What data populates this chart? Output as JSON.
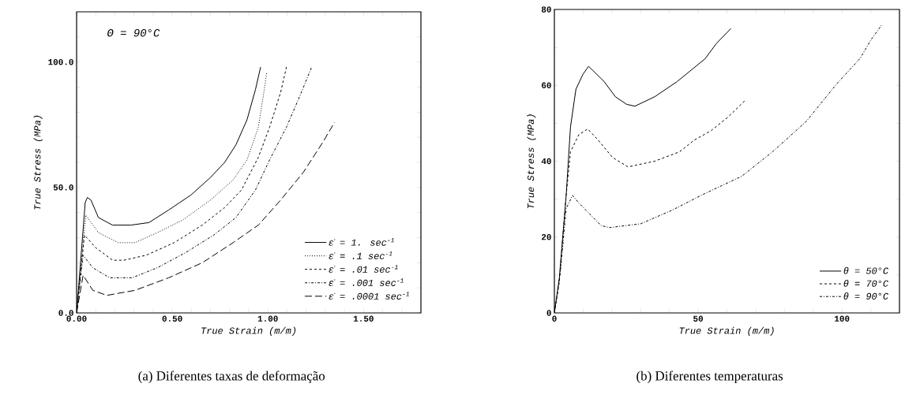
{
  "chart_data": [
    {
      "type": "line",
      "xlabel": "True Strain (m/m)",
      "ylabel": "True Stress (MPa)",
      "xlim": [
        0,
        1.8
      ],
      "ylim": [
        0,
        120
      ],
      "xticks": [
        {
          "value": 0,
          "label": "0.00"
        },
        {
          "value": 0.1,
          "label": null
        },
        {
          "value": 0.2,
          "label": null
        },
        {
          "value": 0.3,
          "label": null
        },
        {
          "value": 0.4,
          "label": null
        },
        {
          "value": 0.5,
          "label": "0.50"
        },
        {
          "value": 0.6,
          "label": null
        },
        {
          "value": 0.7,
          "label": null
        },
        {
          "value": 0.8,
          "label": null
        },
        {
          "value": 0.9,
          "label": null
        },
        {
          "value": 1.0,
          "label": "1.00"
        },
        {
          "value": 1.1,
          "label": null
        },
        {
          "value": 1.2,
          "label": null
        },
        {
          "value": 1.3,
          "label": null
        },
        {
          "value": 1.4,
          "label": null
        },
        {
          "value": 1.5,
          "label": "1.50"
        },
        {
          "value": 1.6,
          "label": null
        },
        {
          "value": 1.7,
          "label": null
        }
      ],
      "yticks": [
        {
          "value": 0,
          "label": "0.0"
        },
        {
          "value": 10,
          "label": null
        },
        {
          "value": 20,
          "label": null
        },
        {
          "value": 30,
          "label": null
        },
        {
          "value": 40,
          "label": null
        },
        {
          "value": 50,
          "label": "50.0"
        },
        {
          "value": 60,
          "label": null
        },
        {
          "value": 70,
          "label": null
        },
        {
          "value": 80,
          "label": null
        },
        {
          "value": 90,
          "label": null
        },
        {
          "value": 100,
          "label": "100.0"
        },
        {
          "value": 110,
          "label": null
        }
      ],
      "legend": "bottom right",
      "grid": false,
      "annotations": [
        "Θ = 90°C",
        "(a) Diferentes taxas de deformação"
      ],
      "series": [
        {
          "name": "ε̇ = 1. sec$^{-1}$",
          "color": "#000000",
          "line_style": "solid",
          "x": [
            0,
            0.045,
            0.056,
            0.075,
            0.114,
            0.188,
            0.283,
            0.378,
            0.481,
            0.598,
            0.7,
            0.774,
            0.833,
            0.891,
            0.935,
            0.962
          ],
          "values": [
            0,
            44,
            46,
            45,
            38,
            35,
            35,
            36,
            41,
            47,
            54,
            60,
            67,
            77,
            89,
            98
          ]
        },
        {
          "name": "ε̇ = .1 sec$^{-1}$",
          "color": "#000000",
          "line_style": "dotted",
          "x": [
            0,
            0.048,
            0.114,
            0.217,
            0.305,
            0.422,
            0.554,
            0.7,
            0.818,
            0.891,
            0.95,
            0.979,
            0.994
          ],
          "values": [
            0,
            39,
            32,
            28,
            28,
            32,
            37,
            45,
            53,
            61,
            74,
            88,
            96
          ]
        },
        {
          "name": "ε̇ = .01 sec$^{-1}$",
          "color": "#000000",
          "line_style": "dashed",
          "x": [
            0,
            0.041,
            0.1,
            0.188,
            0.246,
            0.364,
            0.51,
            0.657,
            0.774,
            0.862,
            0.95,
            1.009,
            1.067,
            1.097
          ],
          "values": [
            0,
            31,
            26,
            21,
            21,
            23,
            28,
            35,
            42,
            49,
            62,
            74,
            88,
            98
          ]
        },
        {
          "name": "ε̇ = .001 sec$^{-1}$",
          "color": "#000000",
          "line_style": "dashdot",
          "x": [
            0,
            0.034,
            0.085,
            0.173,
            0.29,
            0.422,
            0.569,
            0.716,
            0.833,
            0.935,
            1.009,
            1.097,
            1.17,
            1.229
          ],
          "values": [
            0,
            23,
            18,
            14,
            14,
            18,
            24,
            31,
            38,
            49,
            61,
            74,
            87,
            98
          ]
        },
        {
          "name": "ε̇ = .0001 sec$^{-1}$",
          "color": "#000000",
          "line_style": "longdash",
          "x": [
            0,
            0.034,
            0.085,
            0.158,
            0.305,
            0.481,
            0.657,
            0.818,
            0.95,
            1.067,
            1.185,
            1.287,
            1.349
          ],
          "values": [
            0,
            15,
            9,
            7,
            9,
            14,
            20,
            28,
            35,
            45,
            56,
            68,
            76
          ]
        }
      ]
    },
    {
      "type": "line",
      "xlabel": "True Strain (m/m)",
      "ylabel": "True Stress (MPa)",
      "xlim": [
        0,
        120
      ],
      "ylim": [
        0,
        80
      ],
      "xticks": [
        0,
        {
          "value": 10,
          "label": null
        },
        {
          "value": 20,
          "label": null
        },
        {
          "value": 30,
          "label": null
        },
        {
          "value": 40,
          "label": null
        },
        50,
        {
          "value": 60,
          "label": null
        },
        {
          "value": 70,
          "label": null
        },
        {
          "value": 80,
          "label": null
        },
        {
          "value": 90,
          "label": null
        },
        100,
        {
          "value": 110,
          "label": null
        }
      ],
      "yticks": [
        0,
        {
          "value": 10,
          "label": null
        },
        20,
        {
          "value": 30,
          "label": null
        },
        40,
        {
          "value": 50,
          "label": null
        },
        60,
        {
          "value": 70,
          "label": null
        },
        80
      ],
      "legend": "bottom right",
      "grid": false,
      "annotations": [
        "(b) Diferentes temperaturas"
      ],
      "series": [
        {
          "name": "θ = 50°C",
          "color": "#000000",
          "line_style": "solid",
          "x": [
            0,
            1.7,
            4.1,
            5.6,
            7.5,
            10,
            11.9,
            17.3,
            21.2,
            25.1,
            28,
            34.9,
            42.7,
            52.4,
            56.3,
            61.4
          ],
          "values": [
            0,
            9,
            31,
            49,
            59,
            63,
            65,
            61,
            57,
            55,
            54.5,
            57,
            61,
            67,
            71,
            75
          ]
        },
        {
          "name": "θ = 70°C",
          "color": "#000000",
          "line_style": "dashed",
          "x": [
            0,
            1.7,
            4.1,
            5.6,
            8.5,
            11.6,
            15.3,
            20.2,
            25.6,
            34.9,
            43.6,
            48.5,
            54.4,
            60.2,
            66.3
          ],
          "values": [
            0,
            8,
            31,
            42.5,
            47,
            48.5,
            45.5,
            41,
            38.5,
            40,
            42.5,
            45.5,
            48,
            51.5,
            56
          ]
        },
        {
          "name": "θ = 90°C",
          "color": "#000000",
          "line_style": "dashdot",
          "x": [
            0,
            2.1,
            4.1,
            6.3,
            8.5,
            12.4,
            16.3,
            19.2,
            30,
            40.7,
            52.4,
            65.1,
            75.9,
            87.6,
            98.3,
            106.2,
            110.1,
            113.9
          ],
          "values": [
            0,
            11,
            27.5,
            31,
            29,
            26,
            23,
            22.5,
            23.5,
            27,
            31.5,
            36,
            42.5,
            50.5,
            60.5,
            67,
            72,
            76
          ]
        }
      ]
    }
  ]
}
